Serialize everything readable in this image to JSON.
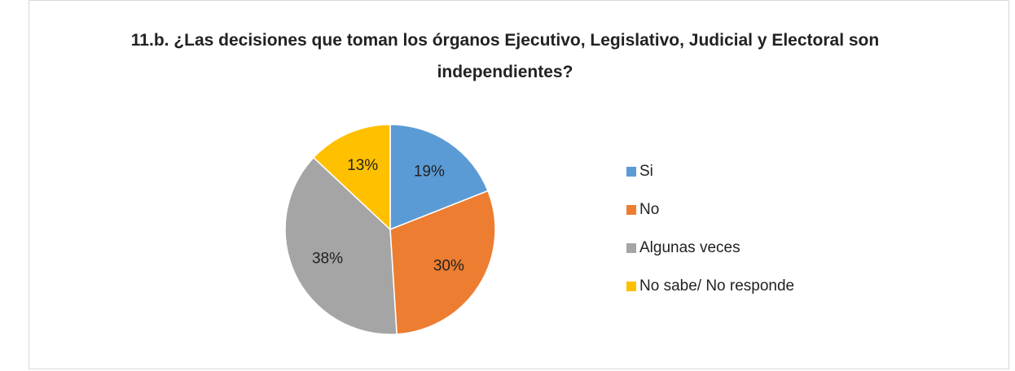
{
  "chart_data": {
    "type": "pie",
    "title": "11.b. ¿Las decisiones que toman los órganos Ejecutivo, Legislativo, Judicial y Electoral son independientes?",
    "categories": [
      "Si",
      "No",
      "Algunas veces",
      "No sabe/ No responde"
    ],
    "values": [
      19,
      30,
      38,
      13
    ],
    "value_labels": [
      "19%",
      "30%",
      "38%",
      "13%"
    ],
    "colors": [
      "#5b9bd5",
      "#ed7d31",
      "#a5a5a5",
      "#ffc000"
    ],
    "legend": "right"
  }
}
